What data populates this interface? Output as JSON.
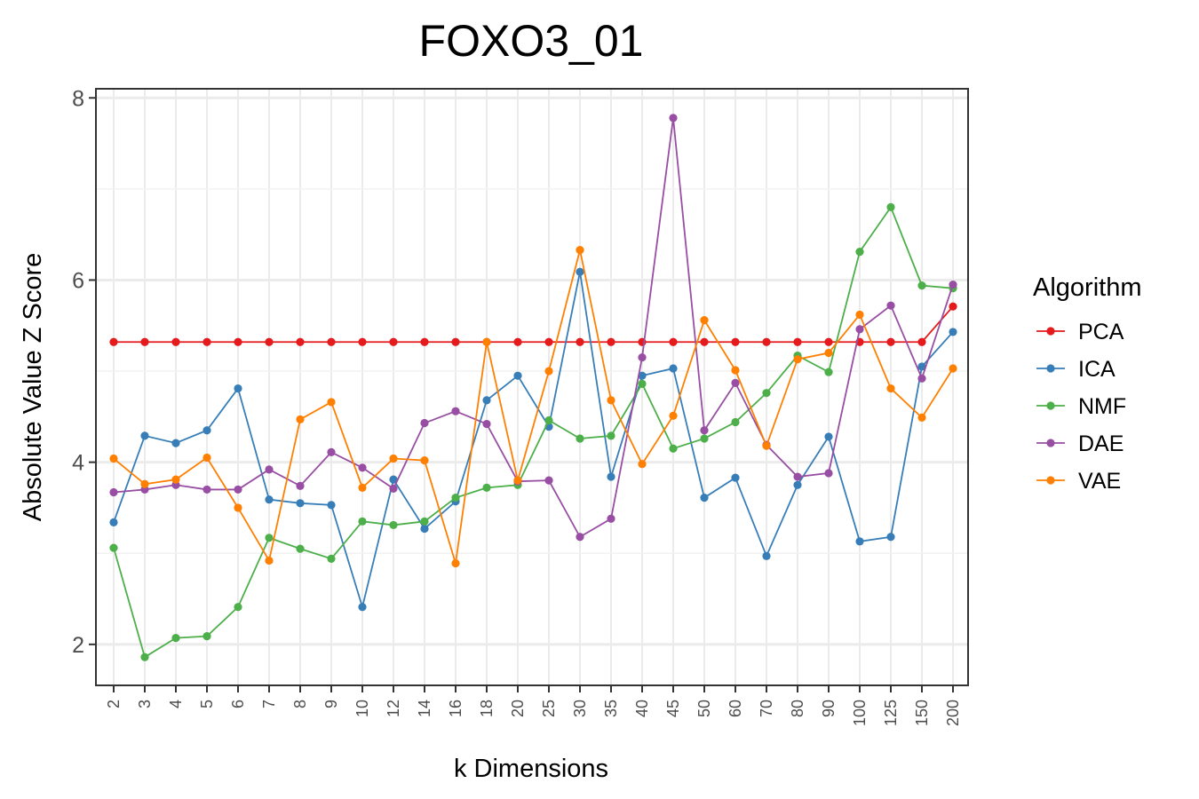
{
  "chart_data": {
    "type": "line",
    "title": "FOXO3_01",
    "xlabel": "k Dimensions",
    "ylabel": "Absolute Value Z Score",
    "categories": [
      "2",
      "3",
      "4",
      "5",
      "6",
      "7",
      "8",
      "9",
      "10",
      "12",
      "14",
      "16",
      "18",
      "20",
      "25",
      "30",
      "35",
      "40",
      "45",
      "50",
      "60",
      "70",
      "80",
      "90",
      "100",
      "125",
      "150",
      "200"
    ],
    "ylim": [
      1.55,
      8.1
    ],
    "yticks": [
      2,
      4,
      6,
      8
    ],
    "grid": true,
    "legend": {
      "title": "Algorithm",
      "position": "right"
    },
    "series": [
      {
        "name": "PCA",
        "color": "#e41a1c",
        "values": [
          5.32,
          5.32,
          5.32,
          5.32,
          5.32,
          5.32,
          5.32,
          5.32,
          5.32,
          5.32,
          5.32,
          5.32,
          5.32,
          5.32,
          5.32,
          5.32,
          5.32,
          5.32,
          5.32,
          5.32,
          5.32,
          5.32,
          5.32,
          5.32,
          5.32,
          5.32,
          5.32,
          5.71
        ]
      },
      {
        "name": "ICA",
        "color": "#377eb8",
        "values": [
          3.34,
          4.29,
          4.21,
          4.35,
          4.81,
          3.59,
          3.55,
          3.53,
          2.41,
          3.81,
          3.27,
          3.57,
          4.68,
          4.95,
          4.39,
          6.09,
          3.84,
          4.95,
          5.03,
          3.61,
          3.83,
          2.97,
          3.75,
          4.28,
          3.13,
          3.18,
          5.05,
          5.43
        ]
      },
      {
        "name": "NMF",
        "color": "#4daf4a",
        "values": [
          3.06,
          1.86,
          2.07,
          2.09,
          2.41,
          3.17,
          3.05,
          2.94,
          3.35,
          3.31,
          3.35,
          3.61,
          3.72,
          3.75,
          4.46,
          4.26,
          4.29,
          4.86,
          4.15,
          4.26,
          4.44,
          4.76,
          5.17,
          4.99,
          6.31,
          6.8,
          5.94,
          5.91
        ]
      },
      {
        "name": "DAE",
        "color": "#984ea3",
        "values": [
          3.67,
          3.7,
          3.75,
          3.7,
          3.7,
          3.92,
          3.74,
          4.11,
          3.94,
          3.71,
          4.43,
          4.56,
          4.42,
          3.79,
          3.8,
          3.18,
          3.38,
          5.15,
          7.78,
          4.35,
          4.87,
          4.19,
          3.84,
          3.88,
          5.46,
          5.72,
          4.92,
          5.95
        ]
      },
      {
        "name": "VAE",
        "color": "#ff7f00",
        "values": [
          4.04,
          3.76,
          3.81,
          4.05,
          3.5,
          2.92,
          4.47,
          4.66,
          3.72,
          4.04,
          4.02,
          2.89,
          5.32,
          3.8,
          5.0,
          6.33,
          4.68,
          3.98,
          4.51,
          5.56,
          5.01,
          4.18,
          5.13,
          5.2,
          5.62,
          4.81,
          4.49,
          5.03
        ]
      }
    ]
  }
}
